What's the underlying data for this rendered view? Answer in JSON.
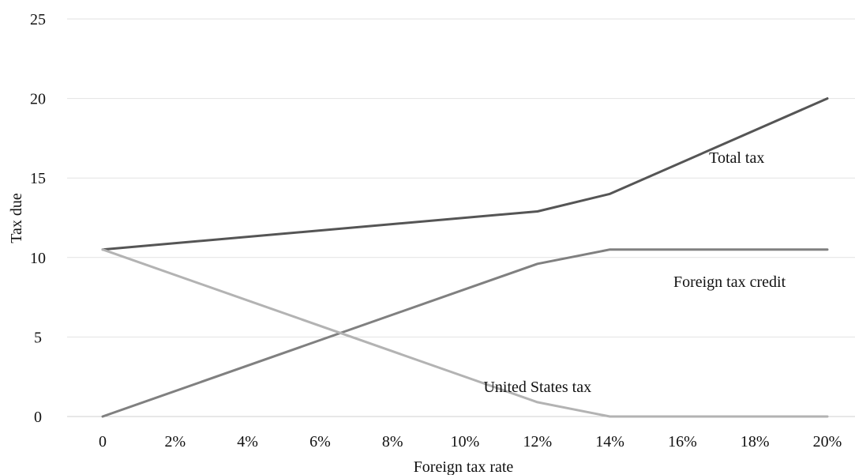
{
  "chart_data": {
    "type": "line",
    "title": "",
    "xlabel": "Foreign tax rate",
    "ylabel": "Tax due",
    "x": [
      0,
      2,
      4,
      6,
      8,
      10,
      12,
      14,
      16,
      18,
      20
    ],
    "x_tick_labels": [
      "0",
      "2%",
      "4%",
      "6%",
      "8%",
      "10%",
      "12%",
      "14%",
      "16%",
      "18%",
      "20%"
    ],
    "ylim": [
      0,
      25
    ],
    "y_ticks": [
      0,
      5,
      10,
      15,
      20,
      25
    ],
    "y_tick_labels": [
      "0",
      "5",
      "10",
      "15",
      "20",
      "25"
    ],
    "grid": "horizontal",
    "legend": "none (series labeled directly on chart)",
    "series": [
      {
        "name": "Total tax",
        "color": "#555555",
        "points": [
          [
            0,
            10.5
          ],
          [
            12,
            12.9
          ],
          [
            14,
            14.0
          ],
          [
            20,
            20.0
          ]
        ]
      },
      {
        "name": "Foreign tax credit",
        "color": "#808080",
        "points": [
          [
            0,
            0
          ],
          [
            12,
            9.6
          ],
          [
            14,
            10.5
          ],
          [
            20,
            10.5
          ]
        ]
      },
      {
        "name": "United States tax",
        "color": "#b3b3b3",
        "points": [
          [
            0,
            10.5
          ],
          [
            12,
            0.9
          ],
          [
            14,
            0
          ],
          [
            20,
            0
          ]
        ]
      }
    ],
    "annotations": [
      {
        "text": "Total tax",
        "series": "Total tax",
        "at": [
          17.5,
          16.3
        ]
      },
      {
        "text": "Foreign tax credit",
        "series": "Foreign tax credit",
        "at": [
          17.3,
          8.5
        ]
      },
      {
        "text": "United States tax",
        "series": "United States tax",
        "at": [
          12.0,
          1.9
        ]
      }
    ]
  }
}
